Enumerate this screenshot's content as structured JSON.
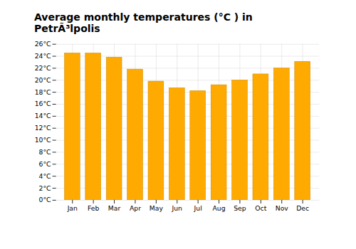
{
  "chart_data": {
    "type": "bar",
    "title": "Average monthly temperatures (°C ) in PetrÃ³lpolis",
    "categories": [
      "Jan",
      "Feb",
      "Mar",
      "Apr",
      "May",
      "Jun",
      "Jul",
      "Aug",
      "Sep",
      "Oct",
      "Nov",
      "Dec"
    ],
    "values": [
      24.5,
      24.5,
      23.8,
      21.8,
      19.8,
      18.7,
      18.2,
      19.2,
      20.0,
      21.0,
      22.0,
      23.1
    ],
    "color": "#FFAA00",
    "ylim": [
      0,
      26
    ],
    "yticks": [
      {
        "value": 0,
        "label": "0°C"
      },
      {
        "value": 2,
        "label": "2°C"
      },
      {
        "value": 4,
        "label": "4°C"
      },
      {
        "value": 6,
        "label": "6°C"
      },
      {
        "value": 8,
        "label": "8°C"
      },
      {
        "value": 10,
        "label": "10°C"
      },
      {
        "value": 12,
        "label": "12°C"
      },
      {
        "value": 14,
        "label": "14°C"
      },
      {
        "value": 16,
        "label": "16°C"
      },
      {
        "value": 18,
        "label": "18°C"
      },
      {
        "value": 20,
        "label": "20°C"
      },
      {
        "value": 22,
        "label": "22°C"
      },
      {
        "value": 24,
        "label": "24°C"
      },
      {
        "value": 26,
        "label": "26°C"
      }
    ],
    "grid": true
  }
}
